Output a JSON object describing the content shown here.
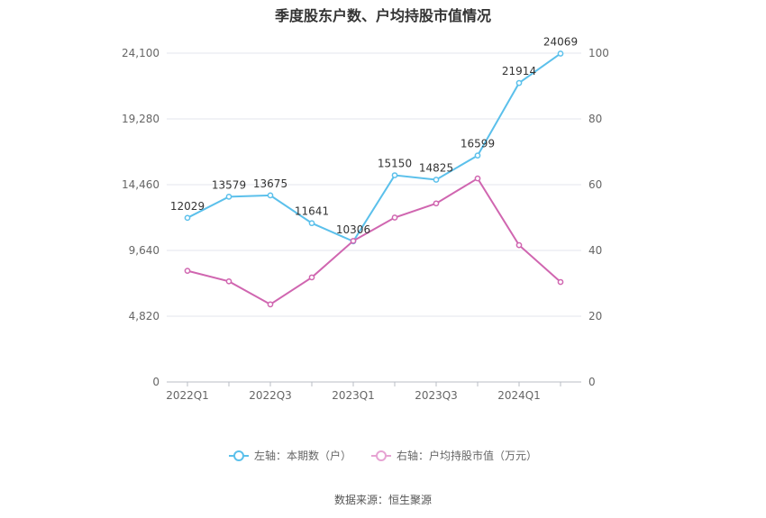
{
  "chart_data": {
    "type": "line",
    "title": "季度股东户数、户均持股市值情况",
    "x_tick_labels": [
      "2022Q1",
      "2022Q3",
      "2023Q1",
      "2023Q3",
      "2024Q1"
    ],
    "categories": [
      "2022Q1",
      "2022Q2",
      "2022Q3",
      "2022Q4",
      "2023Q1",
      "2023Q2",
      "2023Q3",
      "2023Q4",
      "2024Q1",
      "2024Q2"
    ],
    "left_axis": {
      "min": 0,
      "max": 24100,
      "ticks": [
        0,
        4820,
        9640,
        14460,
        19280,
        24100
      ],
      "tick_labels": [
        "0",
        "4,820",
        "9,640",
        "14,460",
        "19,280",
        "24,100"
      ]
    },
    "right_axis": {
      "min": 0,
      "max": 100,
      "ticks": [
        0,
        20,
        40,
        60,
        80,
        100
      ],
      "tick_labels": [
        "0",
        "20",
        "40",
        "60",
        "80",
        "100"
      ]
    },
    "series": [
      {
        "name": "左轴：本期数（户）",
        "axis": "left",
        "color": "#5bc0eb",
        "values": [
          12029,
          13579,
          13675,
          11641,
          10306,
          15150,
          14825,
          16599,
          21914,
          24069
        ],
        "data_labels": [
          "12029",
          "13579",
          "13675",
          "11641",
          "10306",
          "15150",
          "14825",
          "16599",
          "21914",
          "24069"
        ]
      },
      {
        "name": "右轴：户均持股市值（万元）",
        "axis": "right",
        "color": "#d066b0",
        "values": [
          33.8,
          30.6,
          23.6,
          31.8,
          42.9,
          50.0,
          54.3,
          61.9,
          41.6,
          30.4
        ]
      }
    ],
    "grid": true,
    "legend_position": "bottom-center"
  },
  "legend": {
    "left_label": "左轴：本期数（户）",
    "right_label": "右轴：户均持股市值（万元）",
    "left_color": "#5bc0eb",
    "right_color": "#e6a3d3"
  },
  "footer": {
    "source": "数据来源：恒生聚源"
  }
}
